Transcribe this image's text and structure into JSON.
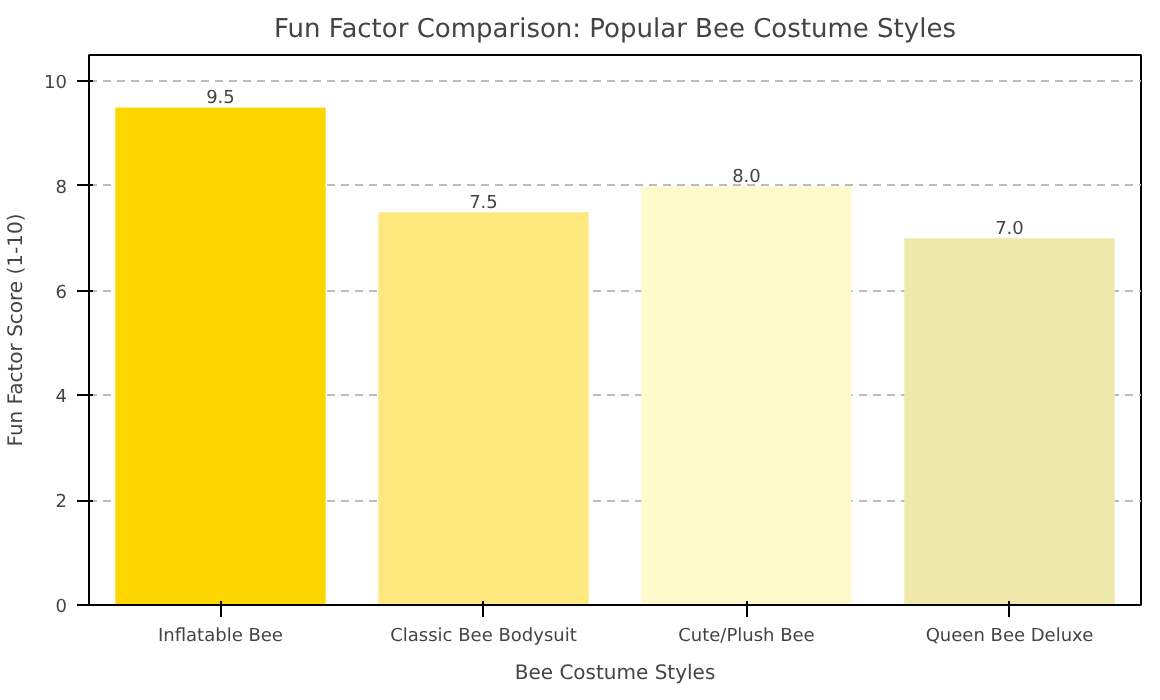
{
  "chart_data": {
    "type": "bar",
    "title": "Fun Factor Comparison: Popular Bee Costume Styles",
    "xlabel": "Bee Costume Styles",
    "ylabel": "Fun Factor Score (1-10)",
    "categories": [
      "Inflatable Bee",
      "Classic Bee Bodysuit",
      "Cute/Plush Bee",
      "Queen Bee Deluxe"
    ],
    "values": [
      9.5,
      7.5,
      8.0,
      7.0
    ],
    "colors": [
      "#ffd700",
      "#ffe97f",
      "#fffacd",
      "#eee8aa"
    ],
    "value_labels": [
      "9.5",
      "7.5",
      "8.0",
      "7.0"
    ],
    "ylim": [
      0,
      10.5
    ],
    "yticks": [
      0,
      2,
      4,
      6,
      8,
      10
    ],
    "grid": "y"
  }
}
